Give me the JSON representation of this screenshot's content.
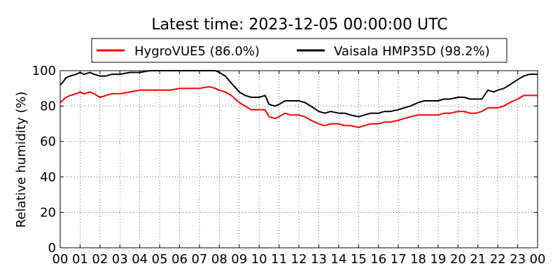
{
  "chart_data": {
    "type": "line",
    "title": "Latest time: 2023-12-05 00:00:00 UTC",
    "xlabel": "",
    "ylabel": "Relative humidity (%)",
    "xlim": [
      0,
      24
    ],
    "ylim": [
      0,
      100
    ],
    "grid": true,
    "legend_position": "top",
    "xticks": [
      "00",
      "01",
      "02",
      "03",
      "04",
      "05",
      "06",
      "07",
      "08",
      "09",
      "10",
      "11",
      "12",
      "13",
      "14",
      "15",
      "16",
      "17",
      "18",
      "19",
      "20",
      "21",
      "22",
      "23",
      "00"
    ],
    "yticks": [
      0,
      20,
      40,
      60,
      80,
      100
    ],
    "series": [
      {
        "name": "HygroVUE5 (86.0%)",
        "color": "#ff0000",
        "x": [
          0,
          0.1,
          0.3,
          0.5,
          0.8,
          1.0,
          1.2,
          1.5,
          1.7,
          2.0,
          2.3,
          2.6,
          3.0,
          3.5,
          4.0,
          4.5,
          5.0,
          5.5,
          6.0,
          6.5,
          7.0,
          7.5,
          7.8,
          8.0,
          8.3,
          8.6,
          9.0,
          9.3,
          9.6,
          10.0,
          10.3,
          10.5,
          10.8,
          11.0,
          11.3,
          11.6,
          12.0,
          12.3,
          12.6,
          13.0,
          13.3,
          13.6,
          14.0,
          14.3,
          14.6,
          15.0,
          15.3,
          15.6,
          16.0,
          16.3,
          16.6,
          17.0,
          17.3,
          17.6,
          18.0,
          18.3,
          18.6,
          19.0,
          19.3,
          19.6,
          20.0,
          20.3,
          20.6,
          20.9,
          21.2,
          21.5,
          21.8,
          22.0,
          22.3,
          22.6,
          23.0,
          23.3,
          23.6,
          24.0
        ],
        "values": [
          82,
          83,
          85,
          86,
          87,
          88,
          87,
          88,
          87,
          85,
          86,
          87,
          87,
          88,
          89,
          89,
          89,
          89,
          90,
          90,
          90,
          91,
          90,
          89,
          88,
          86,
          82,
          80,
          78,
          78,
          78,
          74,
          73,
          74,
          76,
          75,
          75,
          74,
          72,
          70,
          69,
          70,
          70,
          69,
          69,
          68,
          69,
          70,
          70,
          71,
          71,
          72,
          73,
          74,
          75,
          75,
          75,
          75,
          76,
          76,
          77,
          77,
          76,
          76,
          77,
          79,
          79,
          79,
          80,
          82,
          84,
          86,
          86,
          86
        ]
      },
      {
        "name": "Vaisala HMP35D (98.2%)",
        "color": "#000000",
        "x": [
          0,
          0.1,
          0.3,
          0.5,
          0.8,
          1.0,
          1.2,
          1.5,
          1.7,
          2.0,
          2.3,
          2.6,
          3.0,
          3.5,
          4.0,
          4.5,
          5.0,
          5.5,
          6.0,
          6.5,
          7.0,
          7.5,
          7.8,
          8.0,
          8.3,
          8.6,
          9.0,
          9.3,
          9.6,
          10.0,
          10.3,
          10.5,
          10.8,
          11.0,
          11.3,
          11.6,
          12.0,
          12.3,
          12.6,
          13.0,
          13.3,
          13.6,
          14.0,
          14.3,
          14.6,
          15.0,
          15.3,
          15.6,
          16.0,
          16.3,
          16.6,
          17.0,
          17.3,
          17.6,
          18.0,
          18.3,
          18.6,
          19.0,
          19.3,
          19.6,
          20.0,
          20.3,
          20.6,
          20.9,
          21.2,
          21.5,
          21.8,
          22.0,
          22.3,
          22.6,
          23.0,
          23.3,
          23.6,
          24.0
        ],
        "values": [
          92,
          93,
          96,
          97,
          98,
          99,
          98,
          99,
          98,
          97,
          97,
          98,
          98,
          99,
          99,
          100,
          100,
          100,
          100,
          100,
          100,
          100,
          100,
          99,
          97,
          93,
          88,
          86,
          85,
          85,
          86,
          81,
          80,
          81,
          83,
          83,
          83,
          82,
          80,
          77,
          76,
          77,
          76,
          76,
          75,
          74,
          75,
          76,
          76,
          77,
          77,
          78,
          79,
          80,
          82,
          83,
          83,
          83,
          84,
          84,
          85,
          85,
          84,
          84,
          84,
          89,
          88,
          89,
          90,
          92,
          95,
          97,
          98,
          98
        ]
      }
    ]
  }
}
